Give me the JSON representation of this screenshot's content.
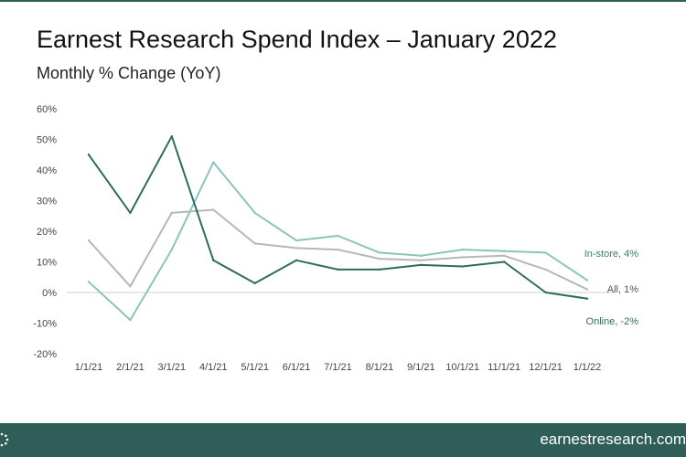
{
  "header": {
    "title": "Earnest Research Spend Index – January 2022",
    "subtitle": "Monthly % Change (YoY)"
  },
  "footer": {
    "site": "earnestresearch.com",
    "logo_icon": "earnest-logo-icon"
  },
  "colors": {
    "brand": "#2f5e58",
    "online": "#2f6b62",
    "all": "#b7b7b7",
    "instore": "#8cc3bb",
    "instore_label": "#3d7a70"
  },
  "chart_data": {
    "type": "line",
    "title": "",
    "xlabel": "",
    "ylabel": "",
    "categories": [
      "1/1/21",
      "2/1/21",
      "3/1/21",
      "4/1/21",
      "5/1/21",
      "6/1/21",
      "7/1/21",
      "8/1/21",
      "9/1/21",
      "10/1/21",
      "11/1/21",
      "12/1/21",
      "1/1/22"
    ],
    "ylim": [
      -20,
      60
    ],
    "yticks": [
      -20,
      -10,
      0,
      10,
      20,
      30,
      40,
      50,
      60
    ],
    "ytick_labels": [
      "-20%",
      "-10%",
      "0%",
      "10%",
      "20%",
      "30%",
      "40%",
      "50%",
      "60%"
    ],
    "grid": false,
    "series": [
      {
        "key": "online",
        "name": "Online, -2%",
        "values": [
          45,
          26,
          51,
          10.5,
          3,
          10.5,
          7.5,
          7.5,
          9,
          8.5,
          10,
          0,
          -2
        ]
      },
      {
        "key": "all",
        "name": "All, 1%",
        "values": [
          17,
          2,
          26,
          27,
          16,
          14.5,
          14,
          11,
          10.5,
          11.5,
          12,
          7.5,
          1
        ]
      },
      {
        "key": "instore",
        "name": "In-store, 4%",
        "values": [
          3.5,
          -9,
          14,
          42.5,
          26,
          17,
          18.5,
          13,
          12,
          14,
          13.5,
          13,
          4
        ]
      }
    ]
  }
}
